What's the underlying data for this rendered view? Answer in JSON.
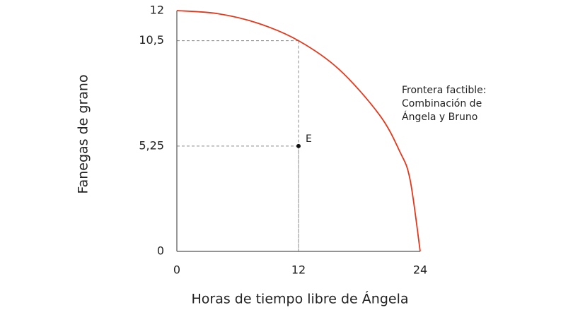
{
  "chart_data": {
    "type": "line",
    "x_label": "Horas de tiempo libre de Ángela",
    "y_label": "Fanegas de grano",
    "xlim": [
      0,
      24
    ],
    "ylim": [
      0,
      12
    ],
    "xticks": [
      0,
      12,
      24
    ],
    "yticks": [
      0,
      {
        "value": 5.25,
        "label": "5,25"
      },
      {
        "value": 10.5,
        "label": "10,5"
      },
      12
    ],
    "series": [
      {
        "color": "#e03a1e",
        "x": [
          0,
          4,
          8,
          12,
          16,
          20,
          22,
          23,
          24
        ],
        "values": [
          12,
          11.85,
          11.37,
          10.5,
          9.07,
          6.79,
          4.96,
          3.58,
          0
        ]
      }
    ],
    "guides": [
      {
        "x": 12,
        "y": 10.5
      },
      {
        "x": 12,
        "y": 5.25
      }
    ],
    "points": [
      {
        "label": "E",
        "x": 12,
        "y": 5.25
      }
    ],
    "annotation_lines": [
      "Frontera factible:",
      "Combinación de",
      "Ángela y Bruno"
    ]
  }
}
